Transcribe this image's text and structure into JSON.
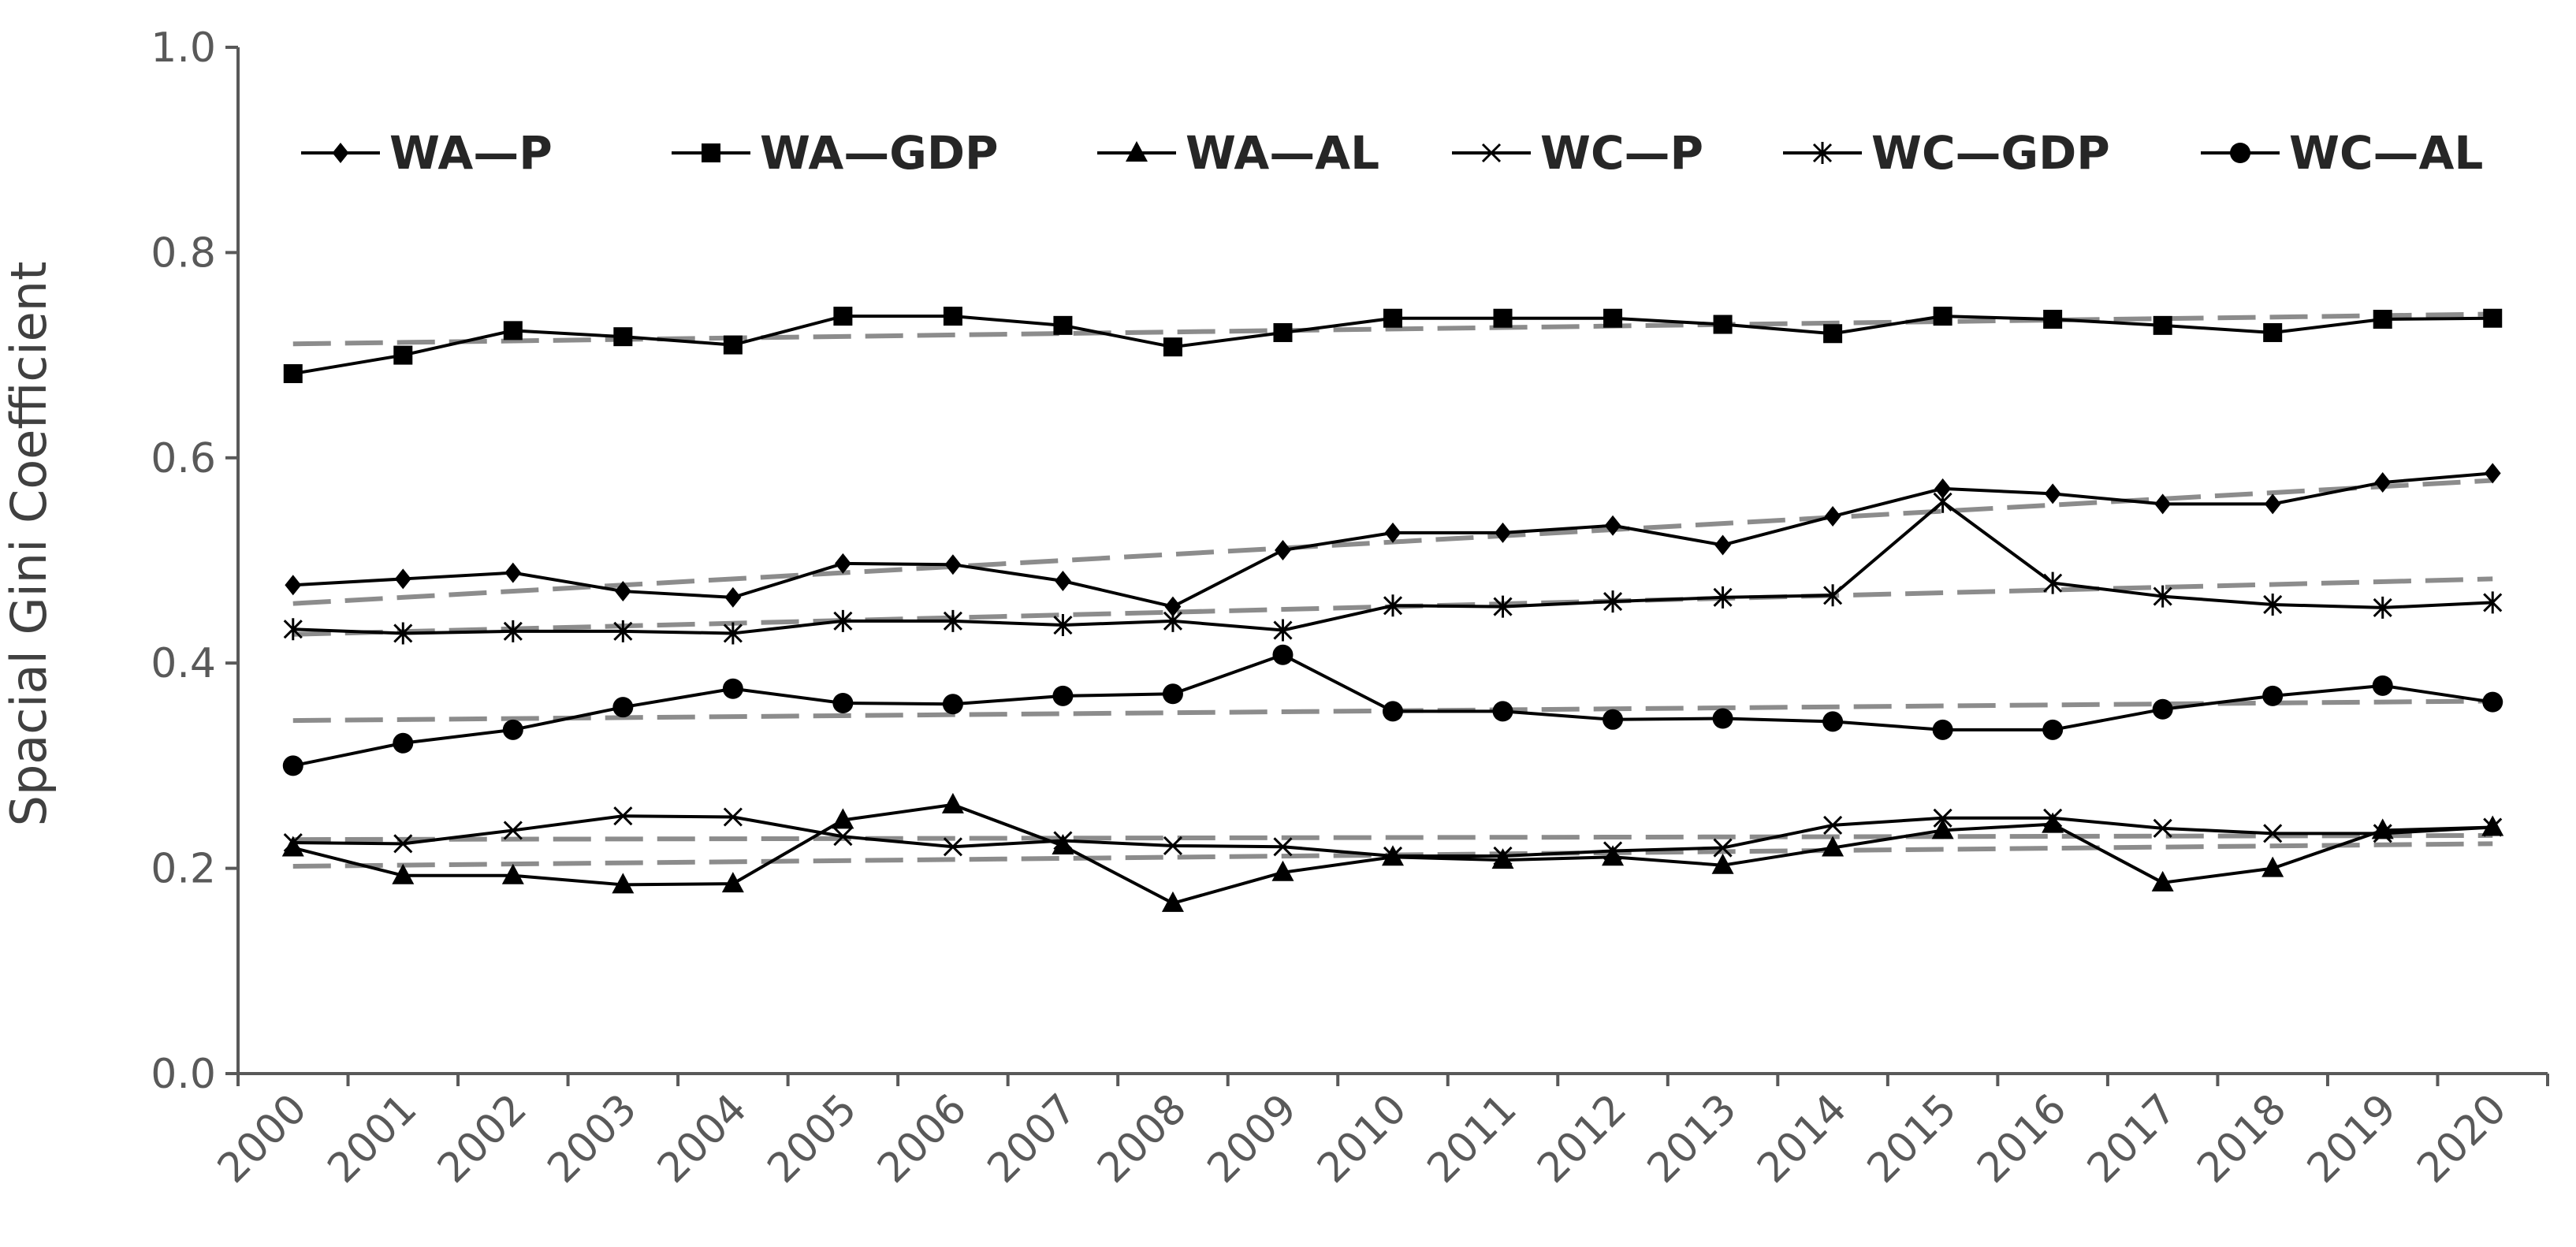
{
  "chart_data": {
    "type": "line",
    "ylabel": "Spacial Gini Coefficient",
    "xlabel": "",
    "title": "",
    "ylim": [
      0,
      1
    ],
    "yticks": [
      "0.0",
      "0.2",
      "0.4",
      "0.6",
      "0.8",
      "1.0"
    ],
    "categories": [
      "2000",
      "2001",
      "2002",
      "2003",
      "2004",
      "2005",
      "2006",
      "2007",
      "2008",
      "2009",
      "2010",
      "2011",
      "2012",
      "2013",
      "2014",
      "2015",
      "2016",
      "2017",
      "2018",
      "2019",
      "2020"
    ],
    "legend_position": "top, inside plot",
    "grid": false,
    "series": [
      {
        "name": "WA—P",
        "marker": "diamond",
        "values": [
          0.476,
          0.482,
          0.488,
          0.47,
          0.464,
          0.497,
          0.496,
          0.48,
          0.455,
          0.51,
          0.527,
          0.527,
          0.534,
          0.515,
          0.543,
          0.57,
          0.565,
          0.555,
          0.555,
          0.576,
          0.585
        ],
        "trend": [
          0.458,
          0.578
        ]
      },
      {
        "name": "WA—GDP",
        "marker": "square",
        "values": [
          0.682,
          0.7,
          0.724,
          0.718,
          0.71,
          0.738,
          0.738,
          0.729,
          0.708,
          0.722,
          0.736,
          0.736,
          0.736,
          0.73,
          0.721,
          0.738,
          0.735,
          0.729,
          0.722,
          0.735,
          0.736
        ],
        "trend": [
          0.711,
          0.74
        ]
      },
      {
        "name": "WA—AL",
        "marker": "triangle",
        "values": [
          0.22,
          0.193,
          0.193,
          0.184,
          0.185,
          0.247,
          0.262,
          0.222,
          0.166,
          0.196,
          0.211,
          0.208,
          0.211,
          0.203,
          0.22,
          0.237,
          0.243,
          0.186,
          0.2,
          0.237,
          0.24
        ],
        "trend": [
          0.202,
          0.224
        ]
      },
      {
        "name": "WC—P",
        "marker": "x",
        "values": [
          0.225,
          0.224,
          0.237,
          0.251,
          0.25,
          0.231,
          0.221,
          0.227,
          0.222,
          0.221,
          0.212,
          0.212,
          0.217,
          0.22,
          0.242,
          0.249,
          0.249,
          0.239,
          0.234,
          0.234,
          0.24
        ],
        "trend": [
          0.228,
          0.232
        ]
      },
      {
        "name": "WC—GDP",
        "marker": "star",
        "values": [
          0.433,
          0.429,
          0.431,
          0.431,
          0.429,
          0.441,
          0.441,
          0.437,
          0.441,
          0.432,
          0.456,
          0.455,
          0.46,
          0.464,
          0.466,
          0.557,
          0.478,
          0.465,
          0.457,
          0.454,
          0.459
        ],
        "trend": [
          0.428,
          0.482
        ]
      },
      {
        "name": "WC—AL",
        "marker": "circle",
        "values": [
          0.3,
          0.322,
          0.335,
          0.357,
          0.375,
          0.361,
          0.36,
          0.368,
          0.37,
          0.408,
          0.353,
          0.353,
          0.345,
          0.346,
          0.343,
          0.335,
          0.335,
          0.355,
          0.368,
          0.378,
          0.362
        ],
        "trend": [
          0.344,
          0.363
        ]
      }
    ]
  },
  "colors": {
    "series_line": "#000000",
    "trend_line": "#8c8c8c",
    "axis": "#595959"
  }
}
